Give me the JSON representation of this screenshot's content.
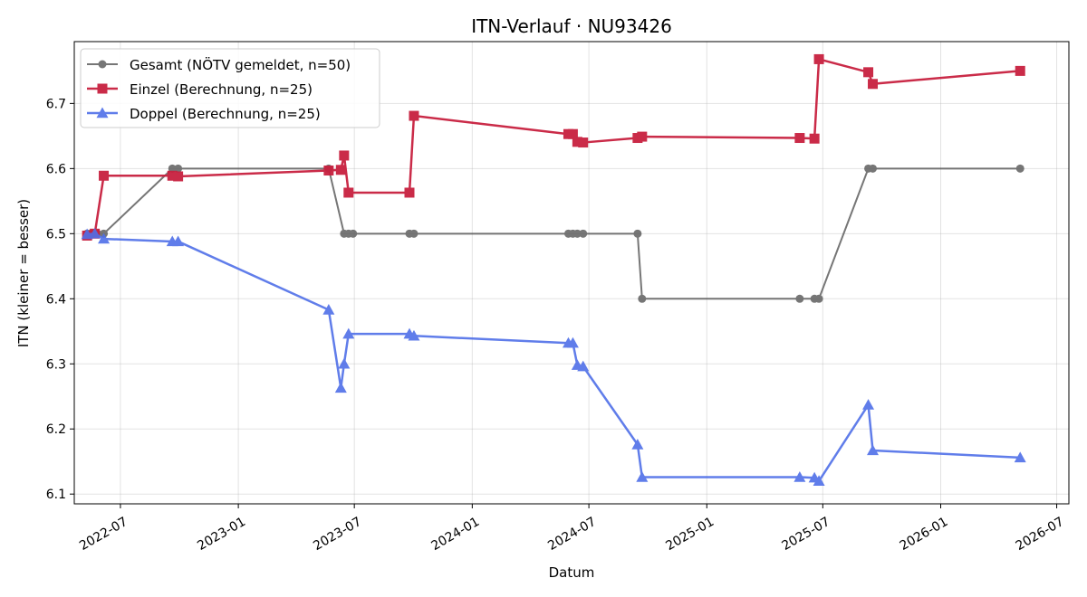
{
  "chart_data": {
    "type": "line",
    "title": "ITN-Verlauf · NU93426",
    "xlabel": "Datum",
    "ylabel": "ITN  (kleiner = besser)",
    "x_ticks": [
      "2022-07",
      "2023-01",
      "2023-07",
      "2024-01",
      "2024-07",
      "2025-01",
      "2025-07",
      "2026-01",
      "2026-07"
    ],
    "y_ticks": [
      "6.1",
      "6.2",
      "6.3",
      "6.4",
      "6.5",
      "6.6",
      "6.7"
    ],
    "xlim": [
      "2022-04-20",
      "2026-07-20"
    ],
    "ylim": [
      6.085,
      6.795
    ],
    "grid": true,
    "legend_position": "upper-left",
    "series": [
      {
        "name": "Gesamt (NÖTV gemeldet, n=50)",
        "color": "#555555",
        "marker": "circle",
        "points": [
          [
            "2022-05-10",
            6.5
          ],
          [
            "2022-05-15",
            6.5
          ],
          [
            "2022-05-20",
            6.5
          ],
          [
            "2022-05-26",
            6.5
          ],
          [
            "2022-06-05",
            6.5
          ],
          [
            "2022-09-20",
            6.6
          ],
          [
            "2022-09-29",
            6.6
          ],
          [
            "2023-05-22",
            6.6
          ],
          [
            "2023-06-15",
            6.5
          ],
          [
            "2023-06-22",
            6.5
          ],
          [
            "2023-06-29",
            6.5
          ],
          [
            "2023-09-25",
            6.5
          ],
          [
            "2023-10-02",
            6.5
          ],
          [
            "2024-05-30",
            6.5
          ],
          [
            "2024-06-06",
            6.5
          ],
          [
            "2024-06-13",
            6.5
          ],
          [
            "2024-06-22",
            6.5
          ],
          [
            "2024-09-15",
            6.5
          ],
          [
            "2024-09-22",
            6.4
          ],
          [
            "2025-05-26",
            6.4
          ],
          [
            "2025-06-18",
            6.4
          ],
          [
            "2025-06-25",
            6.4
          ],
          [
            "2025-09-10",
            6.6
          ],
          [
            "2025-09-17",
            6.6
          ],
          [
            "2026-05-05",
            6.6
          ]
        ]
      },
      {
        "name": "Einzel (Berechnung, n=25)",
        "color": "#c8203f",
        "marker": "square",
        "points": [
          [
            "2022-05-10",
            6.497
          ],
          [
            "2022-05-22",
            6.5
          ],
          [
            "2022-06-05",
            6.589
          ],
          [
            "2022-09-20",
            6.589
          ],
          [
            "2022-09-29",
            6.588
          ],
          [
            "2023-05-22",
            6.597
          ],
          [
            "2023-06-10",
            6.598
          ],
          [
            "2023-06-15",
            6.62
          ],
          [
            "2023-06-22",
            6.563
          ],
          [
            "2023-09-25",
            6.563
          ],
          [
            "2023-10-02",
            6.681
          ],
          [
            "2024-05-30",
            6.653
          ],
          [
            "2024-06-06",
            6.653
          ],
          [
            "2024-06-13",
            6.641
          ],
          [
            "2024-06-22",
            6.64
          ],
          [
            "2024-09-15",
            6.647
          ],
          [
            "2024-09-22",
            6.649
          ],
          [
            "2025-05-26",
            6.647
          ],
          [
            "2025-06-18",
            6.646
          ],
          [
            "2025-06-25",
            6.768
          ],
          [
            "2025-09-10",
            6.748
          ],
          [
            "2025-09-17",
            6.73
          ],
          [
            "2026-05-05",
            6.75
          ]
        ]
      },
      {
        "name": "Doppel (Berechnung, n=25)",
        "color": "#4f6fe8",
        "marker": "triangle",
        "points": [
          [
            "2022-05-10",
            6.499
          ],
          [
            "2022-05-22",
            6.5
          ],
          [
            "2022-06-05",
            6.492
          ],
          [
            "2022-09-20",
            6.488
          ],
          [
            "2022-09-29",
            6.488
          ],
          [
            "2023-05-22",
            6.383
          ],
          [
            "2023-06-10",
            6.263
          ],
          [
            "2023-06-15",
            6.3
          ],
          [
            "2023-06-22",
            6.346
          ],
          [
            "2023-09-25",
            6.346
          ],
          [
            "2023-10-02",
            6.343
          ],
          [
            "2024-05-30",
            6.332
          ],
          [
            "2024-06-06",
            6.332
          ],
          [
            "2024-06-13",
            6.298
          ],
          [
            "2024-06-22",
            6.296
          ],
          [
            "2024-09-15",
            6.176
          ],
          [
            "2024-09-22",
            6.126
          ],
          [
            "2025-05-26",
            6.126
          ],
          [
            "2025-06-18",
            6.125
          ],
          [
            "2025-06-25",
            6.12
          ],
          [
            "2025-09-10",
            6.237
          ],
          [
            "2025-09-17",
            6.167
          ],
          [
            "2026-05-05",
            6.156
          ]
        ]
      }
    ]
  }
}
